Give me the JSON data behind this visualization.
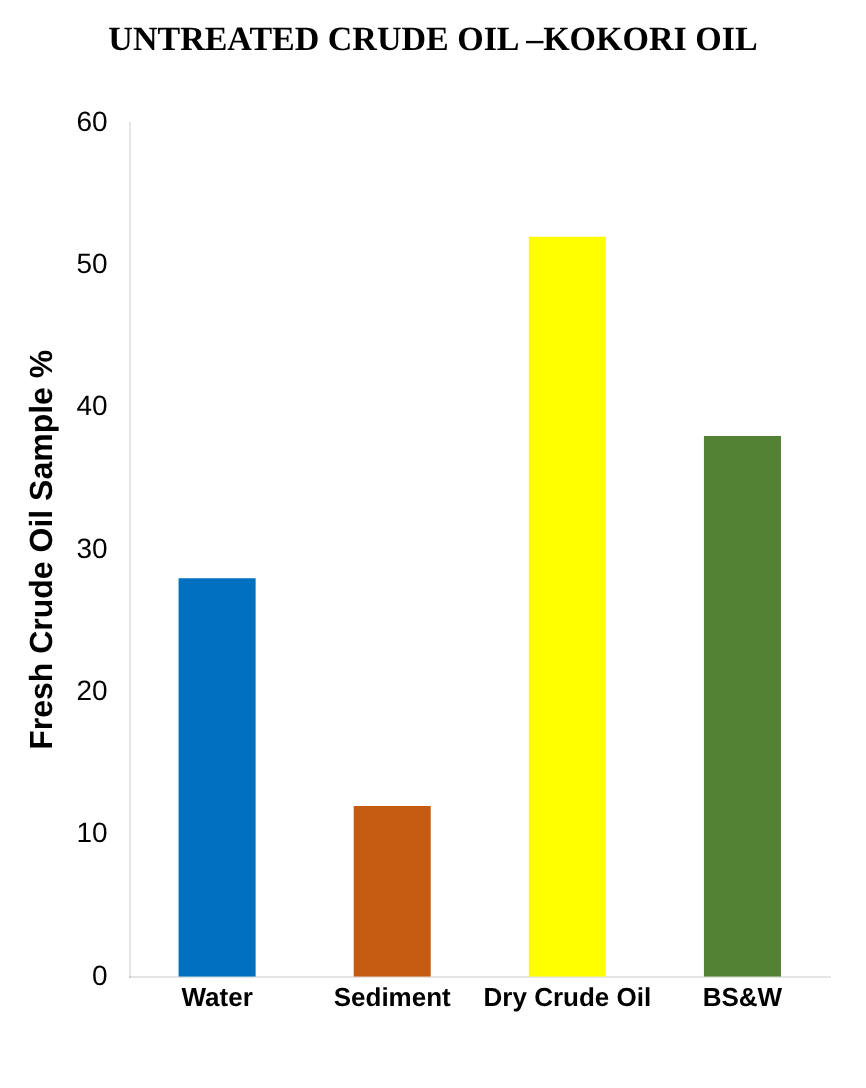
{
  "chart_data": {
    "type": "bar",
    "title": "UNTREATED CRUDE OIL –KOKORI OIL",
    "ylabel": "Fresh Crude Oil Sample %",
    "categories": [
      "Water",
      "Sediment",
      "Dry Crude Oil",
      "BS&W"
    ],
    "values": [
      28,
      12,
      52,
      38
    ],
    "colors": [
      "#0070c0",
      "#c55a11",
      "#ffff00",
      "#548235"
    ],
    "ylim": [
      0,
      60
    ],
    "yticks": [
      0,
      10,
      20,
      30,
      40,
      50,
      60
    ],
    "grid": false,
    "legend": false
  }
}
